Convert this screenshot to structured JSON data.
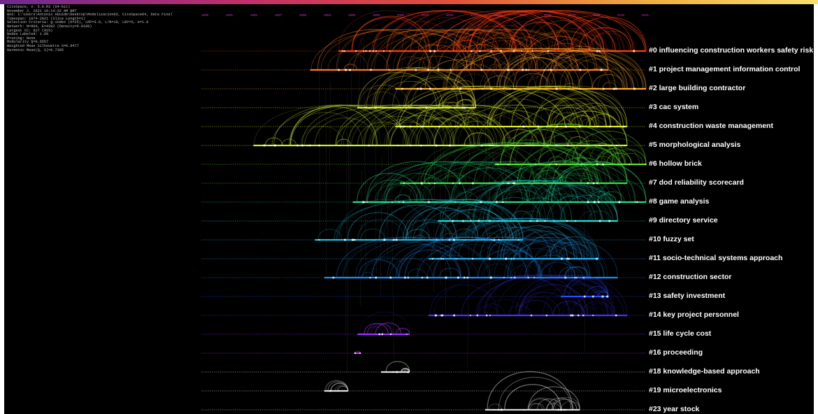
{
  "window": {
    "app": "CiteSpace timeline view"
  },
  "info_lines": [
    "CiteSpace, v. 5.8.R3 (64-bit)",
    "November 2, 2021 10:14:32 AM BRT",
    "WoS: C:\\Users\\Antonio Abuide\\Desktop\\Modelizacion03, CiteSpace04, Data Final",
    "Timespan: 1974-2021 (Slice Length=1)",
    "Selection Criteria: g-index (k=25), LRF=3.0, L/N=10, LBY=5, e=1.0",
    "Network: N=904, E=4392 (Density=0.0108)",
    "Largest CC: 827 (91%)",
    "Nodes Labeled: 1.0%",
    "Pruning: None",
    "Modularity Q=0.6557",
    "Weighted Mean Silhouette S=0.8477",
    "Harmonic Mean(Q, S)=0.7395"
  ],
  "axis_years": [
    "1998",
    "1991",
    "1991",
    "1997",
    "1988",
    "1983",
    "1986",
    "1999",
    "2000",
    "2003",
    "2005",
    "2001",
    "2006",
    "2007",
    "2010",
    "2013",
    "2009",
    "2016",
    "2021"
  ],
  "clusters": [
    {
      "id": "#0",
      "label": "#0 influencing construction workers safety risk",
      "color": "#ff3a10",
      "start": 1988.5,
      "end": 2021,
      "arc_opacity": 0.75
    },
    {
      "id": "#1",
      "label": "#1 project management information control",
      "color": "#ff7a1e",
      "start": 1985.5,
      "end": 2017,
      "arc_opacity": 0.55
    },
    {
      "id": "#2",
      "label": "#2 large building contractor",
      "color": "#ffaa2a",
      "start": 1994.5,
      "end": 2021,
      "arc_opacity": 0.55
    },
    {
      "id": "#3",
      "label": "#3 cac system",
      "color": "#e8e030",
      "start": 1990.5,
      "end": 2003,
      "arc_opacity": 0.5
    },
    {
      "id": "#4",
      "label": "#4 construction waste management",
      "color": "#e0ee20",
      "start": 1994.5,
      "end": 2019,
      "arc_opacity": 0.55
    },
    {
      "id": "#5",
      "label": "#5 morphological analysis",
      "color": "#c8f030",
      "start": 1979.5,
      "end": 2019,
      "arc_opacity": 0.5
    },
    {
      "id": "#6",
      "label": "#6 hollow brick",
      "color": "#6ae020",
      "start": 2005,
      "end": 2021,
      "arc_opacity": 0.55
    },
    {
      "id": "#7",
      "label": "#7 dod reliability scorecard",
      "color": "#3ae040",
      "start": 1995,
      "end": 2019,
      "arc_opacity": 0.45
    },
    {
      "id": "#8",
      "label": "#8 game analysis",
      "color": "#20e090",
      "start": 1990,
      "end": 2021,
      "arc_opacity": 0.45
    },
    {
      "id": "#9",
      "label": "#9 directory service",
      "color": "#20e0d0",
      "start": 1999,
      "end": 2018,
      "arc_opacity": 0.35
    },
    {
      "id": "#10",
      "label": "#10 fuzzy set",
      "color": "#20c0e0",
      "start": 1986,
      "end": 2008,
      "arc_opacity": 0.45
    },
    {
      "id": "#11",
      "label": "#11 socio-technical systems approach",
      "color": "#20b0f0",
      "start": 1998,
      "end": 2016,
      "arc_opacity": 0.4
    },
    {
      "id": "#12",
      "label": "#12 construction sector",
      "color": "#1a90ff",
      "start": 1987,
      "end": 2018,
      "arc_opacity": 0.4
    },
    {
      "id": "#13",
      "label": "#13 safety investment",
      "color": "#2050ff",
      "start": 2012,
      "end": 2017,
      "arc_opacity": 0.45
    },
    {
      "id": "#14",
      "label": "#14 key project personnel",
      "color": "#4a30ff",
      "start": 1998,
      "end": 2019,
      "arc_opacity": 0.35
    },
    {
      "id": "#15",
      "label": "#15 life cycle cost",
      "color": "#a030ff",
      "start": 1990.5,
      "end": 1996,
      "arc_opacity": 0.6
    },
    {
      "id": "#16",
      "label": "#16 proceeding",
      "color": "#d030f0",
      "start": 1990.2,
      "end": 1990.8,
      "arc_opacity": 0.3
    },
    {
      "id": "#18",
      "label": "#18 knowledge-based approach",
      "color": "#e0e0e0",
      "start": 1993,
      "end": 1996,
      "arc_opacity": 0.6
    },
    {
      "id": "#19",
      "label": "#19 microelectronics",
      "color": "#e0e0e0",
      "start": 1987,
      "end": 1989.5,
      "arc_opacity": 0.6
    },
    {
      "id": "#23",
      "label": "#23 year stock",
      "color": "#d8d8d8",
      "start": 2004,
      "end": 2014,
      "arc_opacity": 0.6
    }
  ]
}
